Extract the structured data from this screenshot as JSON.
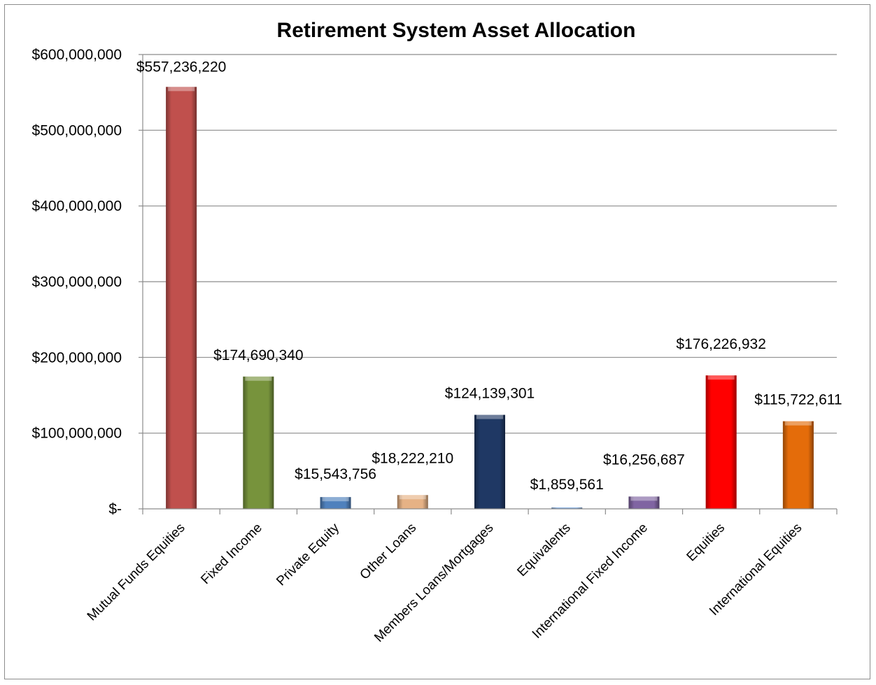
{
  "chart_data": {
    "type": "bar",
    "title": "Retirement System Asset Allocation",
    "xlabel": "",
    "ylabel": "",
    "ylim": [
      0,
      600000000
    ],
    "yticks": [
      0,
      100000000,
      200000000,
      300000000,
      400000000,
      500000000,
      600000000
    ],
    "ytick_labels": [
      "$-",
      "$100,000,000",
      "$200,000,000",
      "$300,000,000",
      "$400,000,000",
      "$500,000,000",
      "$600,000,000"
    ],
    "grid": true,
    "legend": "none",
    "categories": [
      "Mutual Funds Equities",
      "Fixed Income",
      "Private Equity",
      "Other Loans",
      "Members Loans/Mortgages",
      "Equivalents",
      "International Fixed Income",
      "Equities",
      "International Equities"
    ],
    "values": [
      557236220,
      174690340,
      15543756,
      18222210,
      124139301,
      1859561,
      16256687,
      176226932,
      115722611
    ],
    "data_labels": [
      "$557,236,220",
      "$174,690,340",
      "$15,543,756",
      "$18,222,210",
      "$124,139,301",
      "$1,859,561",
      "$16,256,687",
      "$176,226,932",
      "$115,722,611"
    ],
    "colors": [
      "#c0504d",
      "#77933c",
      "#4f81bd",
      "#e6b285",
      "#1f3864",
      "#8db3e2",
      "#8064a2",
      "#ff0000",
      "#e46c0a"
    ]
  }
}
